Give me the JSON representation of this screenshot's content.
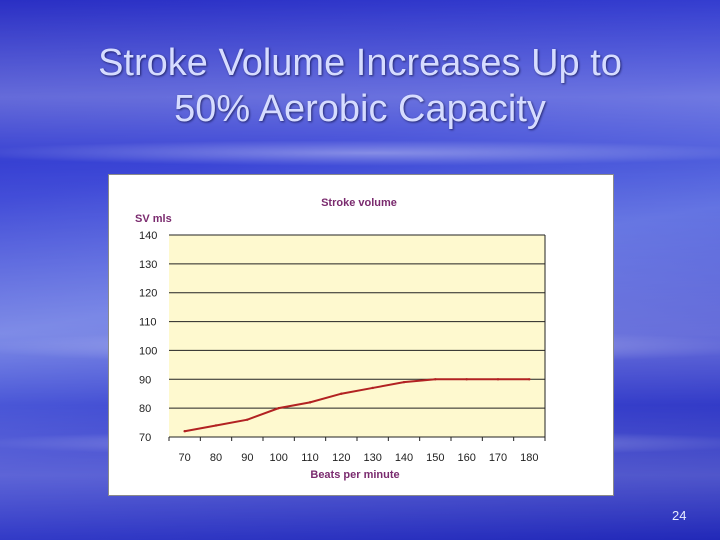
{
  "slide": {
    "title_line1": "Stroke Volume Increases Up to",
    "title_line2": "50% Aerobic Capacity",
    "page_number": "24"
  },
  "chart_data": {
    "type": "line",
    "title": "Stroke volume",
    "xlabel": "Beats per minute",
    "ylabel": "SV mls",
    "x": [
      70,
      80,
      90,
      100,
      110,
      120,
      130,
      140,
      150,
      160,
      170,
      180
    ],
    "series": [
      {
        "values": [
          72,
          74,
          76,
          80,
          82,
          85,
          87,
          89,
          90,
          90,
          90,
          90
        ]
      }
    ],
    "x_tick_labels": [
      "70",
      "80",
      "90",
      "100",
      "110",
      "120",
      "130",
      "140",
      "150",
      "160",
      "170",
      "180"
    ],
    "y_tick_labels": [
      "140",
      "130",
      "120",
      "110",
      "100",
      "90",
      "80",
      "70"
    ],
    "y_ticks": [
      140,
      130,
      120,
      110,
      100,
      90,
      80,
      70
    ],
    "ylim": [
      70,
      140
    ],
    "grid": true,
    "plot_background": "#fef9cf",
    "line_color": "#b22222",
    "grid_color": "#222222"
  }
}
